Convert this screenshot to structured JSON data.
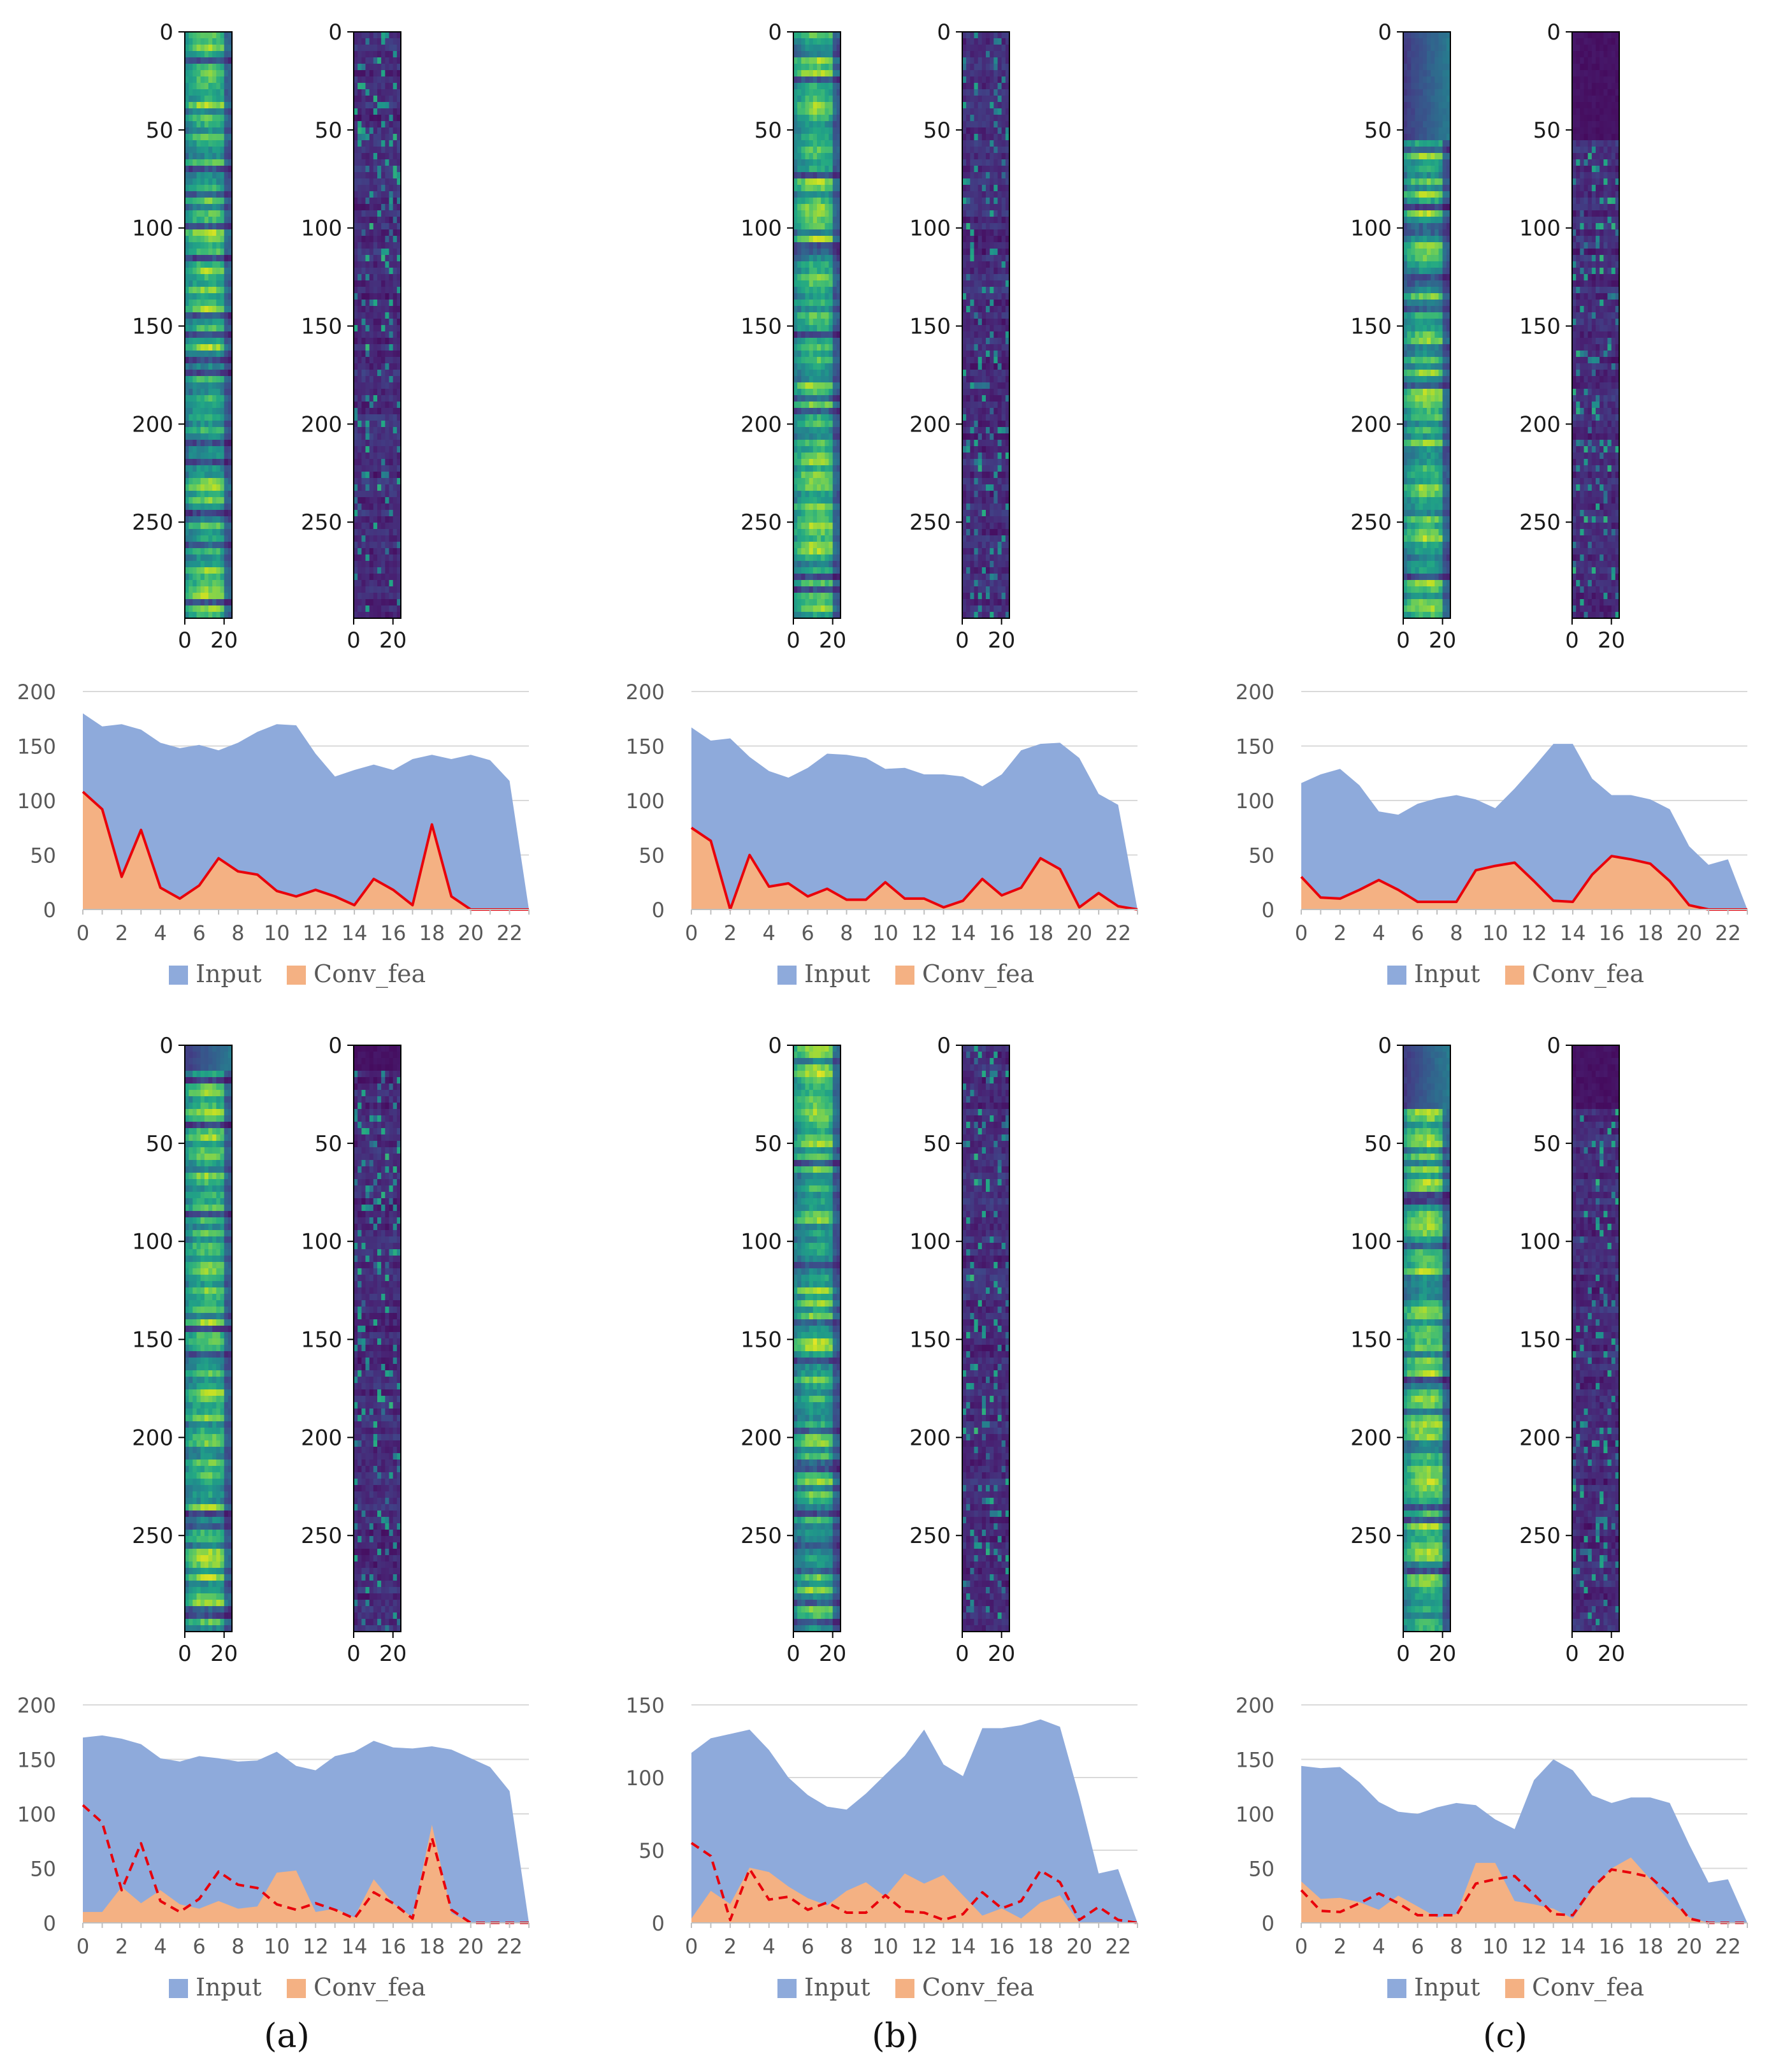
{
  "figure": {
    "panel_labels": [
      "(a)",
      "(b)",
      "(c)"
    ],
    "legend": {
      "input_label": "Input",
      "conv_label": "Conv_fea"
    },
    "colors": {
      "input_fill": "#8eaadb",
      "conv_fill": "#f4b183",
      "line": "#e8000b",
      "axis_text": "#595959",
      "heat_text": "#1a1a1a",
      "gridline": "#d9d9d9"
    },
    "heatmap_colormap": "viridis"
  },
  "chart_data": [
    {
      "type": "heatmap",
      "panel": "a-top",
      "label": "input",
      "column": 0,
      "row": 0,
      "x_range": [
        0,
        24
      ],
      "y_range": [
        0,
        299
      ],
      "x_ticks": [
        "0",
        "20"
      ],
      "y_ticks": [
        "0",
        "50",
        "100",
        "150",
        "200",
        "250"
      ],
      "intensity": "high",
      "dark_top_rows": 0
    },
    {
      "type": "heatmap",
      "panel": "a-top",
      "label": "conv_feature",
      "column": 0,
      "row": 0,
      "x_range": [
        0,
        24
      ],
      "y_range": [
        0,
        299
      ],
      "x_ticks": [
        "0",
        "20"
      ],
      "y_ticks": [
        "0",
        "50",
        "100",
        "150",
        "200",
        "250"
      ],
      "intensity": "low",
      "dark_top_rows": 0
    },
    {
      "type": "heatmap",
      "panel": "b-top",
      "label": "input",
      "column": 1,
      "row": 0,
      "x_range": [
        0,
        24
      ],
      "y_range": [
        0,
        299
      ],
      "x_ticks": [
        "0",
        "20"
      ],
      "y_ticks": [
        "0",
        "50",
        "100",
        "150",
        "200",
        "250"
      ],
      "intensity": "high",
      "dark_top_rows": 0
    },
    {
      "type": "heatmap",
      "panel": "b-top",
      "label": "conv_feature",
      "column": 1,
      "row": 0,
      "x_range": [
        0,
        24
      ],
      "y_range": [
        0,
        299
      ],
      "x_ticks": [
        "0",
        "20"
      ],
      "y_ticks": [
        "0",
        "50",
        "100",
        "150",
        "200",
        "250"
      ],
      "intensity": "low",
      "dark_top_rows": 0
    },
    {
      "type": "heatmap",
      "panel": "c-top",
      "label": "input",
      "column": 2,
      "row": 0,
      "x_range": [
        0,
        24
      ],
      "y_range": [
        0,
        299
      ],
      "x_ticks": [
        "0",
        "20"
      ],
      "y_ticks": [
        "0",
        "50",
        "100",
        "150",
        "200",
        "250"
      ],
      "intensity": "high",
      "dark_top_rows": 55
    },
    {
      "type": "heatmap",
      "panel": "c-top",
      "label": "conv_feature",
      "column": 2,
      "row": 0,
      "x_range": [
        0,
        24
      ],
      "y_range": [
        0,
        299
      ],
      "x_ticks": [
        "0",
        "20"
      ],
      "y_ticks": [
        "0",
        "50",
        "100",
        "150",
        "200",
        "250"
      ],
      "intensity": "low",
      "dark_top_rows": 55
    },
    {
      "type": "heatmap",
      "panel": "a-bottom",
      "label": "input",
      "column": 0,
      "row": 1,
      "x_range": [
        0,
        24
      ],
      "y_range": [
        0,
        299
      ],
      "x_ticks": [
        "0",
        "20"
      ],
      "y_ticks": [
        "0",
        "50",
        "100",
        "150",
        "200",
        "250"
      ],
      "intensity": "high",
      "dark_top_rows": 12
    },
    {
      "type": "heatmap",
      "panel": "a-bottom",
      "label": "conv_feature",
      "column": 0,
      "row": 1,
      "x_range": [
        0,
        24
      ],
      "y_range": [
        0,
        299
      ],
      "x_ticks": [
        "0",
        "20"
      ],
      "y_ticks": [
        "0",
        "50",
        "100",
        "150",
        "200",
        "250"
      ],
      "intensity": "low",
      "dark_top_rows": 12
    },
    {
      "type": "heatmap",
      "panel": "b-bottom",
      "label": "input",
      "column": 1,
      "row": 1,
      "x_range": [
        0,
        24
      ],
      "y_range": [
        0,
        299
      ],
      "x_ticks": [
        "0",
        "20"
      ],
      "y_ticks": [
        "0",
        "50",
        "100",
        "150",
        "200",
        "250"
      ],
      "intensity": "high",
      "dark_top_rows": 0
    },
    {
      "type": "heatmap",
      "panel": "b-bottom",
      "label": "conv_feature",
      "column": 1,
      "row": 1,
      "x_range": [
        0,
        24
      ],
      "y_range": [
        0,
        299
      ],
      "x_ticks": [
        "0",
        "20"
      ],
      "y_ticks": [
        "0",
        "50",
        "100",
        "150",
        "200",
        "250"
      ],
      "intensity": "low",
      "dark_top_rows": 0
    },
    {
      "type": "heatmap",
      "panel": "c-bottom",
      "label": "input",
      "column": 2,
      "row": 1,
      "x_range": [
        0,
        24
      ],
      "y_range": [
        0,
        299
      ],
      "x_ticks": [
        "0",
        "20"
      ],
      "y_ticks": [
        "0",
        "50",
        "100",
        "150",
        "200",
        "250"
      ],
      "intensity": "high",
      "dark_top_rows": 32
    },
    {
      "type": "heatmap",
      "panel": "c-bottom",
      "label": "conv_feature",
      "column": 2,
      "row": 1,
      "x_range": [
        0,
        24
      ],
      "y_range": [
        0,
        299
      ],
      "x_ticks": [
        "0",
        "20"
      ],
      "y_ticks": [
        "0",
        "50",
        "100",
        "150",
        "200",
        "250"
      ],
      "intensity": "low",
      "dark_top_rows": 32
    },
    {
      "type": "area",
      "panel": "a-top",
      "column": 0,
      "row": 0,
      "x": [
        0,
        1,
        2,
        3,
        4,
        5,
        6,
        7,
        8,
        9,
        10,
        11,
        12,
        13,
        14,
        15,
        16,
        17,
        18,
        19,
        20,
        21,
        22,
        23
      ],
      "x_ticks": [
        "0",
        "2",
        "4",
        "6",
        "8",
        "10",
        "12",
        "14",
        "16",
        "18",
        "20",
        "22"
      ],
      "ylim": [
        0,
        200
      ],
      "y_ticks": [
        "0",
        "50",
        "100",
        "150",
        "200"
      ],
      "line_style": "solid",
      "series": [
        {
          "name": "Input",
          "values": [
            180,
            168,
            170,
            165,
            153,
            148,
            151,
            146,
            153,
            163,
            170,
            169,
            143,
            122,
            128,
            133,
            128,
            138,
            142,
            138,
            142,
            137,
            118,
            0
          ]
        },
        {
          "name": "Conv_fea",
          "values": [
            108,
            92,
            30,
            73,
            20,
            10,
            22,
            47,
            35,
            32,
            17,
            12,
            18,
            12,
            4,
            28,
            18,
            4,
            78,
            12,
            0,
            0,
            0,
            0
          ]
        },
        {
          "name": "line",
          "values": [
            108,
            92,
            30,
            73,
            20,
            10,
            22,
            47,
            35,
            32,
            17,
            12,
            18,
            12,
            4,
            28,
            18,
            4,
            78,
            12,
            0,
            0,
            0,
            0
          ]
        }
      ]
    },
    {
      "type": "area",
      "panel": "b-top",
      "column": 1,
      "row": 0,
      "x": [
        0,
        1,
        2,
        3,
        4,
        5,
        6,
        7,
        8,
        9,
        10,
        11,
        12,
        13,
        14,
        15,
        16,
        17,
        18,
        19,
        20,
        21,
        22,
        23
      ],
      "x_ticks": [
        "0",
        "2",
        "4",
        "6",
        "8",
        "10",
        "12",
        "14",
        "16",
        "18",
        "20",
        "22"
      ],
      "ylim": [
        0,
        200
      ],
      "y_ticks": [
        "0",
        "50",
        "100",
        "150",
        "200"
      ],
      "line_style": "solid",
      "series": [
        {
          "name": "Input",
          "values": [
            167,
            155,
            157,
            140,
            127,
            121,
            130,
            143,
            142,
            139,
            129,
            130,
            124,
            124,
            122,
            113,
            124,
            146,
            152,
            153,
            139,
            106,
            96,
            0
          ]
        },
        {
          "name": "Conv_fea",
          "values": [
            75,
            63,
            0,
            50,
            21,
            24,
            12,
            19,
            9,
            9,
            25,
            10,
            10,
            2,
            8,
            28,
            13,
            20,
            47,
            37,
            2,
            15,
            3,
            0
          ]
        },
        {
          "name": "line",
          "values": [
            75,
            63,
            0,
            50,
            21,
            24,
            12,
            19,
            9,
            9,
            25,
            10,
            10,
            2,
            8,
            28,
            13,
            20,
            47,
            37,
            2,
            15,
            3,
            0
          ]
        }
      ]
    },
    {
      "type": "area",
      "panel": "c-top",
      "column": 2,
      "row": 0,
      "x": [
        0,
        1,
        2,
        3,
        4,
        5,
        6,
        7,
        8,
        9,
        10,
        11,
        12,
        13,
        14,
        15,
        16,
        17,
        18,
        19,
        20,
        21,
        22,
        23
      ],
      "x_ticks": [
        "0",
        "2",
        "4",
        "6",
        "8",
        "10",
        "12",
        "14",
        "16",
        "18",
        "20",
        "22"
      ],
      "ylim": [
        0,
        200
      ],
      "y_ticks": [
        "0",
        "50",
        "100",
        "150",
        "200"
      ],
      "line_style": "solid",
      "series": [
        {
          "name": "Input",
          "values": [
            116,
            124,
            129,
            114,
            90,
            87,
            97,
            102,
            105,
            101,
            93,
            111,
            131,
            152,
            152,
            120,
            105,
            105,
            101,
            92,
            58,
            41,
            46,
            0
          ]
        },
        {
          "name": "Conv_fea",
          "values": [
            30,
            11,
            10,
            18,
            27,
            18,
            7,
            7,
            7,
            36,
            40,
            43,
            26,
            8,
            7,
            32,
            49,
            46,
            42,
            26,
            4,
            0,
            0,
            0
          ]
        },
        {
          "name": "line",
          "values": [
            30,
            11,
            10,
            18,
            27,
            18,
            7,
            7,
            7,
            36,
            40,
            43,
            26,
            8,
            7,
            32,
            49,
            46,
            42,
            26,
            4,
            0,
            0,
            0
          ]
        }
      ]
    },
    {
      "type": "area",
      "panel": "a-bottom",
      "column": 0,
      "row": 1,
      "x": [
        0,
        1,
        2,
        3,
        4,
        5,
        6,
        7,
        8,
        9,
        10,
        11,
        12,
        13,
        14,
        15,
        16,
        17,
        18,
        19,
        20,
        21,
        22,
        23
      ],
      "x_ticks": [
        "0",
        "2",
        "4",
        "6",
        "8",
        "10",
        "12",
        "14",
        "16",
        "18",
        "20",
        "22"
      ],
      "ylim": [
        0,
        200
      ],
      "y_ticks": [
        "0",
        "50",
        "100",
        "150",
        "200"
      ],
      "line_style": "dashed",
      "series": [
        {
          "name": "Input",
          "values": [
            170,
            172,
            169,
            164,
            151,
            148,
            153,
            151,
            148,
            149,
            157,
            144,
            140,
            153,
            157,
            167,
            161,
            160,
            162,
            159,
            151,
            143,
            121,
            0
          ]
        },
        {
          "name": "Conv_fea",
          "values": [
            10,
            10,
            33,
            18,
            30,
            17,
            13,
            20,
            13,
            15,
            46,
            48,
            10,
            13,
            5,
            40,
            18,
            5,
            90,
            9,
            0,
            0,
            0,
            0
          ]
        },
        {
          "name": "line",
          "values": [
            108,
            92,
            30,
            73,
            20,
            10,
            22,
            47,
            35,
            32,
            17,
            12,
            18,
            12,
            4,
            28,
            18,
            4,
            78,
            12,
            0,
            0,
            0,
            0
          ]
        }
      ]
    },
    {
      "type": "area",
      "panel": "b-bottom",
      "column": 1,
      "row": 1,
      "x": [
        0,
        1,
        2,
        3,
        4,
        5,
        6,
        7,
        8,
        9,
        10,
        11,
        12,
        13,
        14,
        15,
        16,
        17,
        18,
        19,
        20,
        21,
        22,
        23
      ],
      "x_ticks": [
        "0",
        "2",
        "4",
        "6",
        "8",
        "10",
        "12",
        "14",
        "16",
        "18",
        "20",
        "22"
      ],
      "ylim": [
        0,
        150
      ],
      "y_ticks": [
        "0",
        "50",
        "100",
        "150"
      ],
      "line_style": "dashed",
      "series": [
        {
          "name": "Input",
          "values": [
            117,
            127,
            130,
            133,
            119,
            100,
            88,
            80,
            78,
            89,
            102,
            115,
            133,
            109,
            101,
            134,
            134,
            136,
            140,
            135,
            87,
            34,
            37,
            0
          ]
        },
        {
          "name": "Conv_fea",
          "values": [
            3,
            22,
            13,
            38,
            35,
            25,
            17,
            12,
            22,
            28,
            18,
            34,
            27,
            33,
            19,
            5,
            10,
            3,
            14,
            19,
            0,
            0,
            0,
            0
          ]
        },
        {
          "name": "line",
          "values": [
            55,
            46,
            2,
            37,
            16,
            18,
            9,
            14,
            7,
            7,
            19,
            8,
            7,
            2,
            6,
            21,
            10,
            15,
            36,
            28,
            2,
            11,
            2,
            0
          ]
        }
      ]
    },
    {
      "type": "area",
      "panel": "c-bottom",
      "column": 2,
      "row": 1,
      "x": [
        0,
        1,
        2,
        3,
        4,
        5,
        6,
        7,
        8,
        9,
        10,
        11,
        12,
        13,
        14,
        15,
        16,
        17,
        18,
        19,
        20,
        21,
        22,
        23
      ],
      "x_ticks": [
        "0",
        "2",
        "4",
        "6",
        "8",
        "10",
        "12",
        "14",
        "16",
        "18",
        "20",
        "22"
      ],
      "ylim": [
        0,
        200
      ],
      "y_ticks": [
        "0",
        "50",
        "100",
        "150",
        "200"
      ],
      "line_style": "dashed",
      "series": [
        {
          "name": "Input",
          "values": [
            144,
            142,
            143,
            129,
            111,
            102,
            100,
            106,
            110,
            108,
            95,
            86,
            131,
            150,
            140,
            117,
            110,
            115,
            115,
            110,
            72,
            37,
            40,
            0
          ]
        },
        {
          "name": "Conv_fea",
          "values": [
            38,
            22,
            23,
            19,
            12,
            25,
            15,
            5,
            8,
            55,
            55,
            20,
            17,
            13,
            4,
            30,
            50,
            60,
            40,
            20,
            5,
            0,
            0,
            0
          ]
        },
        {
          "name": "line",
          "values": [
            30,
            11,
            10,
            18,
            27,
            18,
            7,
            7,
            7,
            36,
            40,
            43,
            26,
            8,
            7,
            32,
            49,
            46,
            42,
            26,
            4,
            0,
            0,
            0
          ]
        }
      ]
    }
  ]
}
